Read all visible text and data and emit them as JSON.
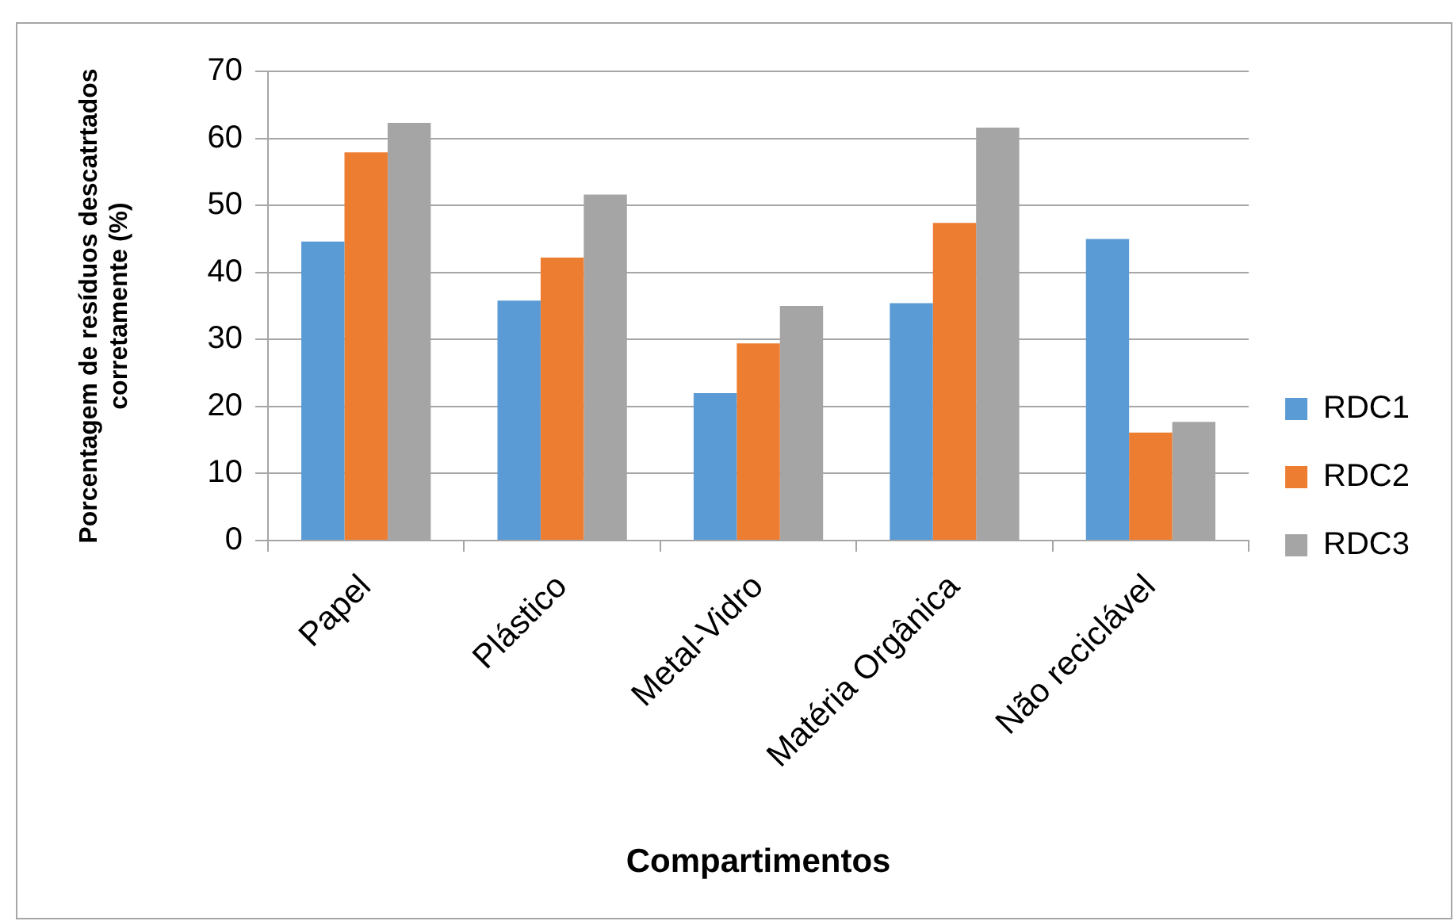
{
  "chart_data": {
    "type": "bar",
    "xlabel": "Compartimentos",
    "ylabel": "Porcentagem de resíduos descatrtados corretamente (%)",
    "categories": [
      "Papel",
      "Plástico",
      "Metal-Vidro",
      "Matéria Orgânica",
      "Não reciclável"
    ],
    "series": [
      {
        "name": "RDC1",
        "color": "#5b9bd5",
        "values": [
          44.6,
          35.8,
          22.0,
          35.4,
          45.0
        ]
      },
      {
        "name": "RDC2",
        "color": "#ed7d31",
        "values": [
          57.9,
          42.2,
          29.4,
          47.4,
          16.1
        ]
      },
      {
        "name": "RDC3",
        "color": "#a5a5a5",
        "values": [
          62.3,
          51.6,
          35.0,
          61.6,
          17.7
        ]
      }
    ],
    "ylim": [
      0,
      70
    ],
    "yticks": [
      0,
      10,
      20,
      30,
      40,
      50,
      60,
      70
    ],
    "grid": "y",
    "legend": "right"
  }
}
